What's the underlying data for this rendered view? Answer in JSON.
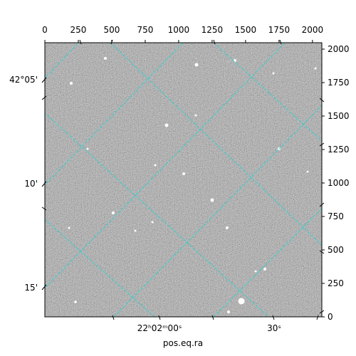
{
  "chart_data": {
    "type": "image",
    "xlabel": "pos.eq.ra",
    "xlim": [
      0,
      2070
    ],
    "ylim": [
      0,
      2048
    ],
    "xticks": [
      0,
      250,
      500,
      750,
      1000,
      1250,
      1500,
      1750,
      2000
    ],
    "yticks": [
      0,
      250,
      500,
      750,
      1000,
      1250,
      1500,
      1750,
      2000
    ],
    "dec_labels": [
      "42°05'",
      "10'",
      "15'"
    ],
    "ra_labels": [
      "22ʰ02ᵐ00ˢ",
      "30ˢ"
    ],
    "grid": true,
    "grid_color": "#22d3d3"
  }
}
